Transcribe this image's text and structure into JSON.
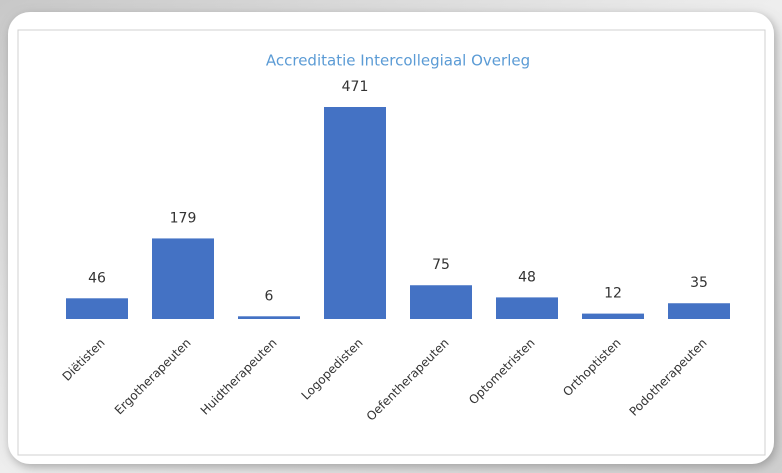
{
  "chart_data": {
    "type": "bar",
    "title": "Accreditatie Intercollegiaal Overleg",
    "categories": [
      "Diëtisten",
      "Ergotherapeuten",
      "Huidtherapeuten",
      "Logopedisten",
      "Oefentherapeuten",
      "Optometristen",
      "Orthoptisten",
      "Podotherapeuten"
    ],
    "values": [
      46,
      179,
      6,
      471,
      75,
      48,
      12,
      35
    ],
    "color": "#4472c4",
    "title_color": "#5b9bd5"
  }
}
